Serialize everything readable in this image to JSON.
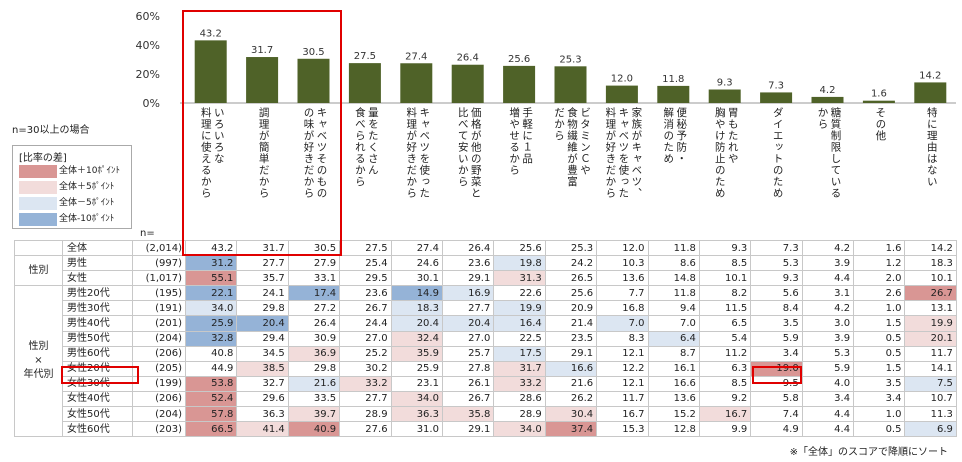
{
  "chart_data": {
    "type": "bar",
    "yticks": [
      "60%",
      "40%",
      "20%",
      "0%"
    ],
    "ylim": [
      0,
      60
    ],
    "categories": [
      "いろいろな\n料理に使えるから",
      "調理が簡単だから",
      "キャベツそのもの\nの味が好きだから",
      "量をたくさん\n食べられるから",
      "キャベツを使った\n料理が好きだから",
      "価格が他の野菜と\n比べて安いから",
      "手軽に１品\n増やせるから",
      "ビタミンＣや\n食物繊維が豊富\nだから",
      "家族がキャベツ、\nキャベツを使った\n料理が好きだから",
      "便秘予防・\n解消のため",
      "胃もたれや\n胸やけ防止のため",
      "ダイエットのため",
      "糖質制限している\nから",
      "その他",
      "特に理由はない"
    ],
    "values": [
      43.2,
      31.7,
      30.5,
      27.5,
      27.4,
      26.4,
      25.6,
      25.3,
      12.0,
      11.8,
      9.3,
      7.3,
      4.2,
      1.6,
      14.2
    ],
    "bar_color": "#4f6228",
    "n_header": "n=",
    "rows": [
      {
        "group": "",
        "label": "全体",
        "n": "(2,014)",
        "values": [
          "43.2",
          "31.7",
          "30.5",
          "27.5",
          "27.4",
          "26.4",
          "25.6",
          "25.3",
          "12.0",
          "11.8",
          "9.3",
          "7.3",
          "4.2",
          "1.6",
          "14.2"
        ],
        "levels": [
          0,
          0,
          0,
          0,
          0,
          0,
          0,
          0,
          0,
          0,
          0,
          0,
          0,
          0,
          0
        ]
      },
      {
        "group": "性別",
        "label": "男性",
        "n": "(997)",
        "values": [
          "31.2",
          "27.7",
          "27.9",
          "25.4",
          "24.6",
          "23.6",
          "19.8",
          "24.2",
          "10.3",
          "8.6",
          "8.5",
          "5.3",
          "3.9",
          "1.2",
          "18.3"
        ],
        "levels": [
          -2,
          0,
          0,
          0,
          0,
          0,
          -1,
          0,
          0,
          0,
          0,
          0,
          0,
          0,
          0
        ]
      },
      {
        "group": "",
        "label": "女性",
        "n": "(1,017)",
        "values": [
          "55.1",
          "35.7",
          "33.1",
          "29.5",
          "30.1",
          "29.1",
          "31.3",
          "26.5",
          "13.6",
          "14.8",
          "10.1",
          "9.3",
          "4.4",
          "2.0",
          "10.1"
        ],
        "levels": [
          2,
          0,
          0,
          0,
          0,
          0,
          1,
          0,
          0,
          0,
          0,
          0,
          0,
          0,
          0
        ]
      },
      {
        "group": "性別×年代別",
        "label": "男性20代",
        "n": "(195)",
        "values": [
          "22.1",
          "24.1",
          "17.4",
          "23.6",
          "14.9",
          "16.9",
          "22.6",
          "25.6",
          "7.7",
          "11.8",
          "8.2",
          "5.6",
          "3.1",
          "2.6",
          "26.7"
        ],
        "levels": [
          -2,
          0,
          -2,
          0,
          -2,
          -1,
          0,
          0,
          0,
          0,
          0,
          0,
          0,
          0,
          2
        ]
      },
      {
        "group": "",
        "label": "男性30代",
        "n": "(191)",
        "values": [
          "34.0",
          "29.8",
          "27.2",
          "26.7",
          "18.3",
          "27.7",
          "19.9",
          "20.9",
          "16.8",
          "9.4",
          "11.5",
          "8.4",
          "4.2",
          "1.0",
          "13.1"
        ],
        "levels": [
          -1,
          0,
          0,
          0,
          -1,
          0,
          -1,
          0,
          0,
          0,
          0,
          0,
          0,
          0,
          0
        ]
      },
      {
        "group": "",
        "label": "男性40代",
        "n": "(201)",
        "values": [
          "25.9",
          "20.4",
          "26.4",
          "24.4",
          "20.4",
          "20.4",
          "16.4",
          "21.4",
          "7.0",
          "7.0",
          "6.5",
          "3.5",
          "3.0",
          "1.5",
          "19.9"
        ],
        "levels": [
          -2,
          -2,
          0,
          0,
          -1,
          -1,
          -1,
          0,
          -1,
          0,
          0,
          0,
          0,
          0,
          1
        ]
      },
      {
        "group": "",
        "label": "男性50代",
        "n": "(204)",
        "values": [
          "32.8",
          "29.4",
          "30.9",
          "27.0",
          "32.4",
          "27.0",
          "22.5",
          "23.5",
          "8.3",
          "6.4",
          "5.4",
          "5.9",
          "3.9",
          "0.5",
          "20.1"
        ],
        "levels": [
          -2,
          0,
          0,
          0,
          1,
          0,
          0,
          0,
          0,
          -1,
          0,
          0,
          0,
          0,
          1
        ]
      },
      {
        "group": "",
        "label": "男性60代",
        "n": "(206)",
        "values": [
          "40.8",
          "34.5",
          "36.9",
          "25.2",
          "35.9",
          "25.7",
          "17.5",
          "29.1",
          "12.1",
          "8.7",
          "11.2",
          "3.4",
          "5.3",
          "0.5",
          "11.7"
        ],
        "levels": [
          0,
          0,
          1,
          0,
          1,
          0,
          -1,
          0,
          0,
          0,
          0,
          0,
          0,
          0,
          0
        ]
      },
      {
        "group": "",
        "label": "女性20代",
        "n": "(205)",
        "values": [
          "44.9",
          "38.5",
          "29.8",
          "30.2",
          "25.9",
          "27.8",
          "31.7",
          "16.6",
          "12.2",
          "16.1",
          "6.3",
          "19.0",
          "5.9",
          "1.5",
          "14.1"
        ],
        "levels": [
          0,
          1,
          0,
          0,
          0,
          0,
          1,
          -1,
          0,
          0,
          0,
          2,
          0,
          0,
          0
        ]
      },
      {
        "group": "",
        "label": "女性30代",
        "n": "(199)",
        "values": [
          "53.8",
          "32.7",
          "21.6",
          "33.2",
          "23.1",
          "26.1",
          "33.2",
          "21.6",
          "12.1",
          "16.6",
          "8.5",
          "9.5",
          "4.0",
          "3.5",
          "7.5"
        ],
        "levels": [
          2,
          0,
          -1,
          1,
          0,
          0,
          1,
          0,
          0,
          0,
          0,
          0,
          0,
          0,
          -1
        ]
      },
      {
        "group": "",
        "label": "女性40代",
        "n": "(206)",
        "values": [
          "52.4",
          "29.6",
          "33.5",
          "27.7",
          "34.0",
          "26.7",
          "28.6",
          "26.2",
          "11.7",
          "13.6",
          "9.2",
          "5.8",
          "3.4",
          "3.4",
          "10.7"
        ],
        "levels": [
          2,
          0,
          0,
          0,
          1,
          0,
          0,
          0,
          0,
          0,
          0,
          0,
          0,
          0,
          0
        ]
      },
      {
        "group": "",
        "label": "女性50代",
        "n": "(204)",
        "values": [
          "57.8",
          "36.3",
          "39.7",
          "28.9",
          "36.3",
          "35.8",
          "28.9",
          "30.4",
          "16.7",
          "15.2",
          "16.7",
          "7.4",
          "4.4",
          "1.0",
          "11.3"
        ],
        "levels": [
          2,
          0,
          1,
          0,
          1,
          1,
          0,
          1,
          0,
          0,
          1,
          0,
          0,
          0,
          0
        ]
      },
      {
        "group": "",
        "label": "女性60代",
        "n": "(203)",
        "values": [
          "66.5",
          "41.4",
          "40.9",
          "27.6",
          "31.0",
          "29.1",
          "34.0",
          "37.4",
          "15.3",
          "12.8",
          "9.9",
          "4.9",
          "4.4",
          "0.5",
          "6.9"
        ],
        "levels": [
          2,
          1,
          2,
          0,
          0,
          0,
          1,
          2,
          0,
          0,
          0,
          0,
          0,
          0,
          -1
        ]
      }
    ],
    "highlight": {
      "columns": [
        0,
        1,
        2
      ],
      "row_label": "女性20代",
      "cell": [
        7,
        11
      ]
    }
  },
  "notes": {
    "min_n": "n=30以上の場合",
    "sort_note": "※「全体」のスコアで降順にソート"
  },
  "legend": {
    "title": "[比率の差]",
    "items": [
      {
        "label": "全体＋10ﾎﾟｲﾝﾄ",
        "color": "#d99694"
      },
      {
        "label": "全体＋5ﾎﾟｲﾝﾄ",
        "color": "#f2dcdb"
      },
      {
        "label": "全体－5ﾎﾟｲﾝﾄ",
        "color": "#dce6f2"
      },
      {
        "label": "全体-10ﾎﾟｲﾝﾄ",
        "color": "#95b3d7"
      }
    ]
  },
  "groups": {
    "gender": "性別",
    "gender_age": "性別\n×\n年代別"
  }
}
